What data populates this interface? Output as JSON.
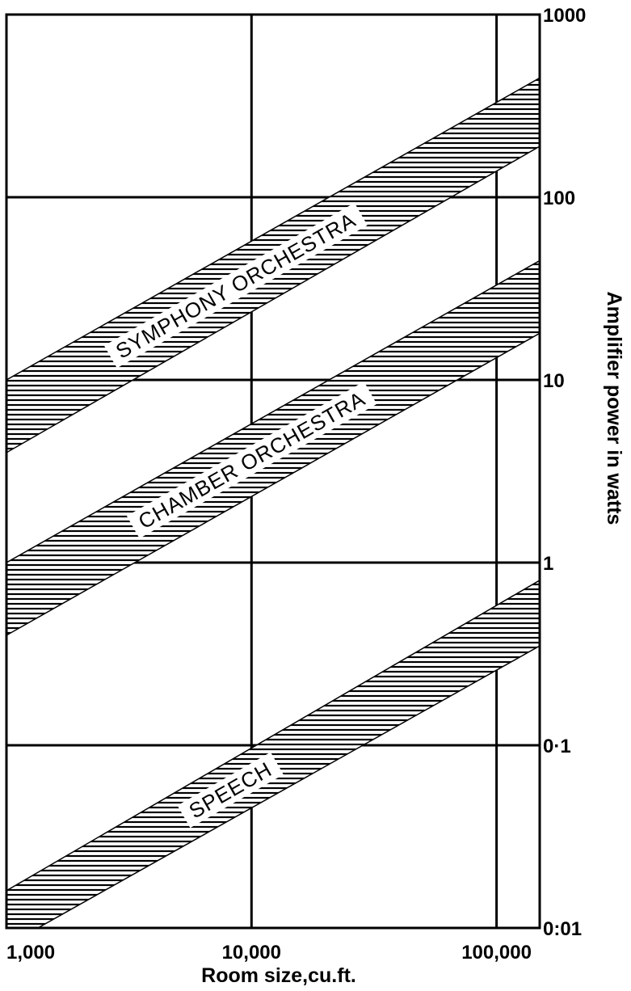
{
  "chart_data": {
    "type": "area",
    "xlabel": "Room size,cu.ft.",
    "ylabel": "Amplifier power in watts",
    "x_scale": "log",
    "y_scale": "log",
    "xlim": [
      1000,
      150000
    ],
    "ylim": [
      0.01,
      1000
    ],
    "grid": true,
    "x_ticks": [
      {
        "value": 1000,
        "label": "1,000"
      },
      {
        "value": 10000,
        "label": "10,000"
      },
      {
        "value": 100000,
        "label": "100,000"
      }
    ],
    "y_ticks": [
      {
        "value": 1000,
        "label": "1000"
      },
      {
        "value": 100,
        "label": "100"
      },
      {
        "value": 10,
        "label": "10"
      },
      {
        "value": 1,
        "label": "1"
      },
      {
        "value": 0.1,
        "label": "0·1"
      },
      {
        "value": 0.01,
        "label": "0:01"
      }
    ],
    "series": [
      {
        "name": "SYMPHONY ORCHESTRA",
        "x": [
          1000,
          150000
        ],
        "y_low": [
          4,
          190
        ],
        "y_high": [
          10,
          450
        ]
      },
      {
        "name": "CHAMBER ORCHESTRA",
        "x": [
          1000,
          150000
        ],
        "y_low": [
          0.4,
          18
        ],
        "y_high": [
          1,
          45
        ]
      },
      {
        "name": "SPEECH",
        "x": [
          1000,
          150000
        ],
        "y_low": [
          0.008,
          0.35
        ],
        "y_high": [
          0.016,
          0.8
        ]
      }
    ]
  }
}
